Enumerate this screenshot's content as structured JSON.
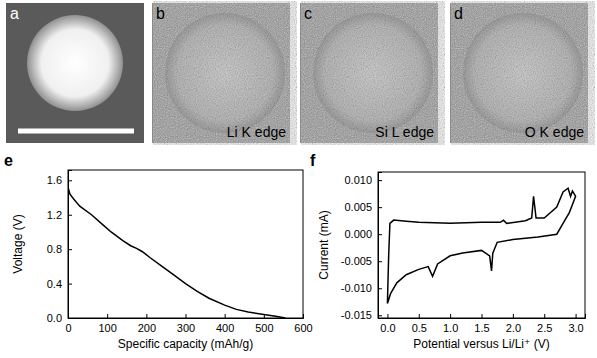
{
  "image_panels": [
    {
      "label": "a"
    },
    {
      "label": "b",
      "caption": "Li K edge"
    },
    {
      "label": "c",
      "caption": "Si L edge"
    },
    {
      "label": "d",
      "caption": "O K edge"
    }
  ],
  "chart_data": [
    {
      "type": "line",
      "panel_label": "e",
      "x_label": "Specific capacity (mAh/g)",
      "y_label": "Voltage (V)",
      "xlim": [
        0,
        600
      ],
      "xticks": [
        0,
        100,
        200,
        300,
        400,
        500,
        600
      ],
      "ylim": [
        0,
        1.72
      ],
      "yticks": [
        {
          "value": 0,
          "label": "0.0"
        },
        0.4,
        0.8,
        1.2,
        1.6
      ],
      "series": [
        {
          "color": "#000000",
          "x": [
            0,
            5,
            15,
            30,
            60,
            90,
            110,
            140,
            160,
            175,
            190,
            210,
            240,
            270,
            300,
            330,
            360,
            400,
            430,
            460,
            500,
            530,
            555
          ],
          "values": [
            1.52,
            1.44,
            1.38,
            1.3,
            1.2,
            1.08,
            1.0,
            0.9,
            0.84,
            0.81,
            0.77,
            0.7,
            0.6,
            0.5,
            0.4,
            0.31,
            0.23,
            0.15,
            0.1,
            0.07,
            0.04,
            0.02,
            0.0
          ]
        }
      ]
    },
    {
      "type": "line",
      "panel_label": "f",
      "x_label": "Potential versus Li/Li⁺ (V)",
      "y_label": "Current (mA)",
      "xlim": [
        -0.15,
        3.15
      ],
      "xticks": [
        {
          "value": 0,
          "label": "0.0"
        },
        0.5,
        {
          "value": 1,
          "label": "1.0"
        },
        1.5,
        {
          "value": 2,
          "label": "2.0"
        },
        2.5,
        {
          "value": 3,
          "label": "3.0"
        }
      ],
      "ylim": [
        -0.0155,
        0.0115
      ],
      "yticks": [
        -0.015,
        {
          "value": -0.01,
          "label": "-0.010"
        },
        -0.005,
        {
          "value": 0,
          "label": "0.000"
        },
        0.005,
        {
          "value": 0.01,
          "label": "0.010"
        }
      ],
      "series": [
        {
          "color": "#000000",
          "x": [
            0.0,
            0.02,
            0.04,
            0.1,
            0.3,
            0.5,
            1.0,
            1.5,
            1.8,
            1.85,
            1.9,
            2.2,
            2.3,
            2.33,
            2.37,
            2.5,
            2.7,
            2.8,
            2.88,
            2.92,
            2.95,
            3.0,
            2.95,
            2.9,
            2.8,
            2.7,
            2.4,
            2.0,
            1.75,
            1.68,
            1.66,
            1.63,
            1.5,
            1.2,
            1.0,
            0.8,
            0.72,
            0.65,
            0.5,
            0.3,
            0.15,
            0.05,
            0.0
          ],
          "values": [
            -0.0128,
            -0.004,
            0.002,
            0.0026,
            0.0024,
            0.0022,
            0.002,
            0.0022,
            0.0022,
            0.0026,
            0.002,
            0.0025,
            0.003,
            0.007,
            0.003,
            0.003,
            0.005,
            0.0078,
            0.0085,
            0.007,
            0.008,
            0.007,
            0.0055,
            0.004,
            0.002,
            0.0,
            -0.0005,
            -0.001,
            -0.0015,
            -0.0035,
            -0.0068,
            -0.004,
            -0.003,
            -0.0035,
            -0.004,
            -0.0055,
            -0.0078,
            -0.006,
            -0.0065,
            -0.0075,
            -0.009,
            -0.011,
            -0.0128
          ]
        }
      ]
    }
  ]
}
